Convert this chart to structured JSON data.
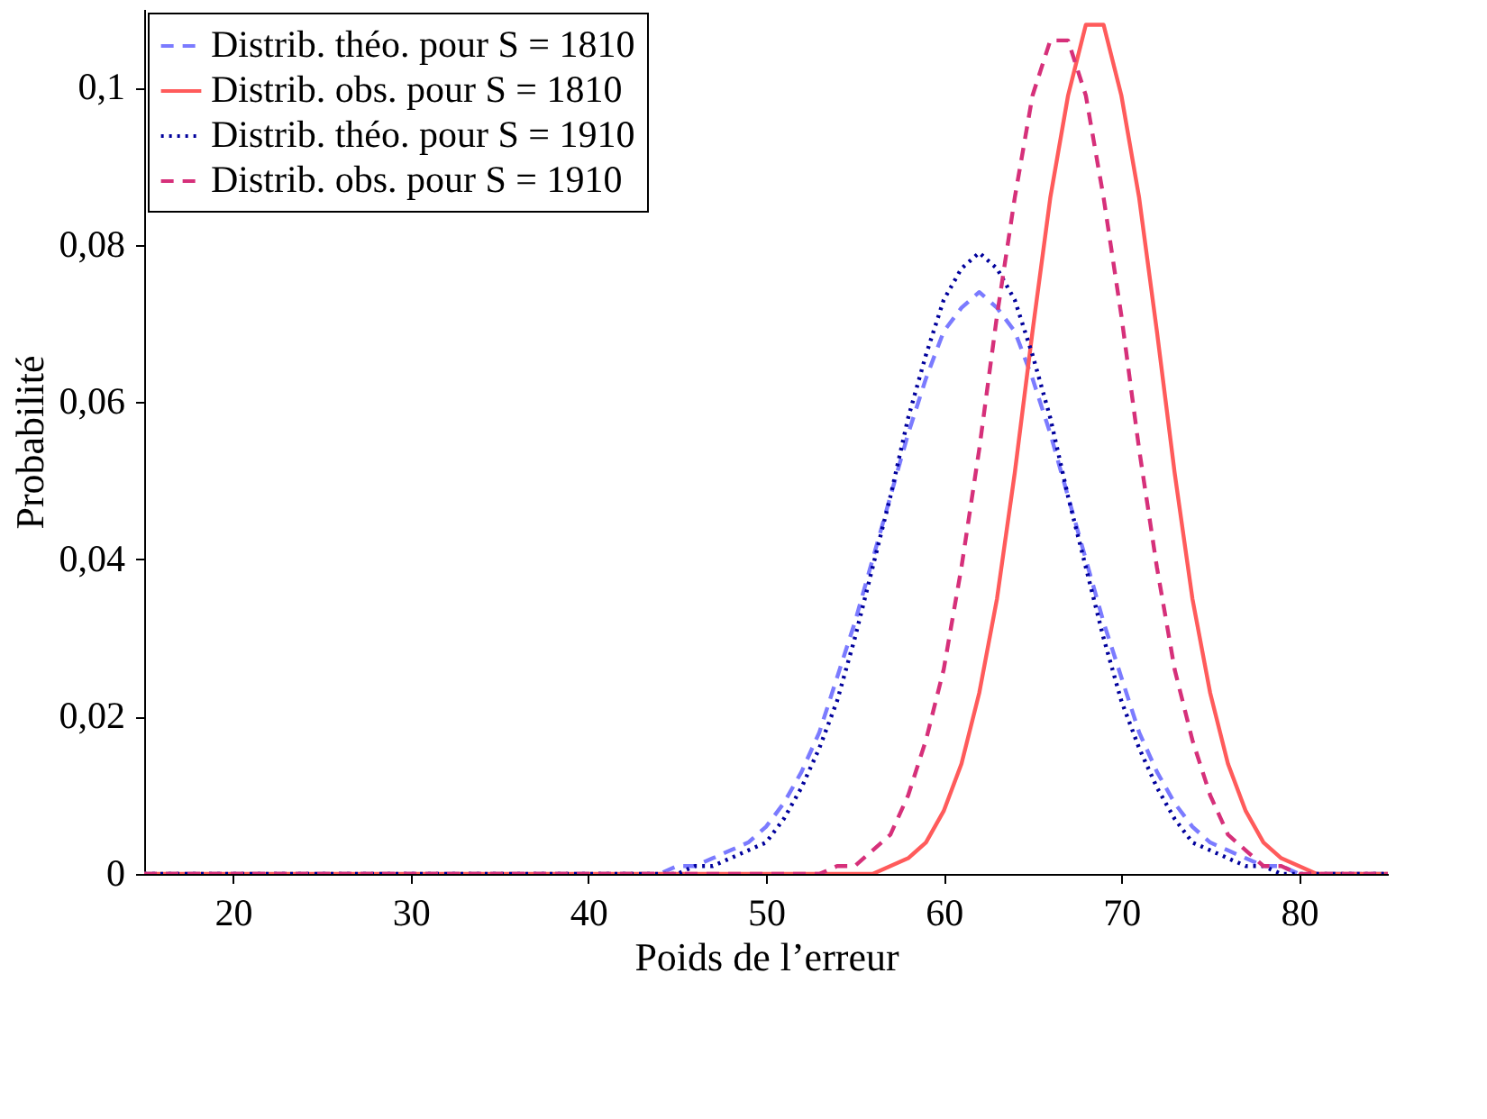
{
  "chart_data": {
    "type": "line",
    "xlabel": "Poids de l’erreur",
    "ylabel": "Probabilité",
    "xlim": [
      15,
      85
    ],
    "ylim": [
      0,
      0.11
    ],
    "xticks": [
      20,
      30,
      40,
      50,
      60,
      70,
      80
    ],
    "yticks": [
      {
        "value": 0,
        "label": "0"
      },
      {
        "value": 0.02,
        "label": "0,02"
      },
      {
        "value": 0.04,
        "label": "0,04"
      },
      {
        "value": 0.06,
        "label": "0,06"
      },
      {
        "value": 0.08,
        "label": "0,08"
      },
      {
        "value": 0.1,
        "label": "0,1"
      }
    ],
    "grid": false,
    "legend": "top left",
    "marker": "none",
    "series": [
      {
        "name": "Distrib. théo. pour S = 1810",
        "color": "#7b7bff",
        "line_style": "dashed",
        "x": [
          15,
          40,
          44,
          45,
          46,
          47,
          48,
          49,
          50,
          51,
          52,
          53,
          54,
          55,
          56,
          57,
          58,
          59,
          60,
          61,
          62,
          63,
          64,
          65,
          66,
          67,
          68,
          69,
          70,
          71,
          72,
          73,
          74,
          75,
          76,
          77,
          78,
          79,
          80,
          85
        ],
        "values": [
          0,
          0,
          0,
          0.001,
          0.001,
          0.002,
          0.003,
          0.004,
          0.006,
          0.009,
          0.013,
          0.018,
          0.025,
          0.032,
          0.04,
          0.048,
          0.056,
          0.063,
          0.069,
          0.072,
          0.074,
          0.072,
          0.069,
          0.063,
          0.056,
          0.048,
          0.04,
          0.032,
          0.025,
          0.018,
          0.013,
          0.009,
          0.006,
          0.004,
          0.003,
          0.002,
          0.001,
          0.001,
          0,
          0
        ]
      },
      {
        "name": "Distrib. obs. pour S = 1810",
        "color": "#ff5b5b",
        "line_style": "solid",
        "x": [
          15,
          54,
          55,
          56,
          57,
          58,
          59,
          60,
          61,
          62,
          63,
          64,
          65,
          66,
          67,
          68,
          69,
          70,
          71,
          72,
          73,
          74,
          75,
          76,
          77,
          78,
          79,
          80,
          81,
          85
        ],
        "values": [
          0,
          0,
          0,
          0,
          0.001,
          0.002,
          0.004,
          0.008,
          0.014,
          0.023,
          0.035,
          0.051,
          0.069,
          0.086,
          0.099,
          0.108,
          0.108,
          0.099,
          0.086,
          0.069,
          0.051,
          0.035,
          0.023,
          0.014,
          0.008,
          0.004,
          0.002,
          0.001,
          0,
          0
        ]
      },
      {
        "name": "Distrib. théo. pour S = 1910",
        "color": "#00009c",
        "line_style": "dotted",
        "x": [
          15,
          40,
          44,
          45,
          46,
          47,
          48,
          49,
          50,
          51,
          52,
          53,
          54,
          55,
          56,
          57,
          58,
          59,
          60,
          61,
          62,
          63,
          64,
          65,
          66,
          67,
          68,
          69,
          70,
          71,
          72,
          73,
          74,
          75,
          76,
          77,
          78,
          79,
          80,
          85
        ],
        "values": [
          0,
          0,
          0,
          0,
          0.001,
          0.001,
          0.002,
          0.003,
          0.004,
          0.007,
          0.011,
          0.016,
          0.022,
          0.03,
          0.039,
          0.048,
          0.058,
          0.066,
          0.073,
          0.077,
          0.079,
          0.077,
          0.073,
          0.066,
          0.058,
          0.048,
          0.039,
          0.03,
          0.022,
          0.016,
          0.011,
          0.007,
          0.004,
          0.003,
          0.002,
          0.001,
          0.001,
          0,
          0,
          0
        ]
      },
      {
        "name": "Distrib. obs. pour S = 1910",
        "color": "#d6307a",
        "line_style": "dashed",
        "x": [
          15,
          53,
          54,
          55,
          56,
          57,
          58,
          59,
          60,
          61,
          62,
          63,
          64,
          65,
          66,
          67,
          68,
          69,
          70,
          71,
          72,
          73,
          74,
          75,
          76,
          77,
          78,
          79,
          80,
          85
        ],
        "values": [
          0,
          0,
          0.001,
          0.001,
          0.003,
          0.005,
          0.01,
          0.017,
          0.026,
          0.039,
          0.054,
          0.071,
          0.086,
          0.099,
          0.106,
          0.106,
          0.099,
          0.086,
          0.071,
          0.054,
          0.039,
          0.026,
          0.017,
          0.01,
          0.005,
          0.003,
          0.001,
          0.001,
          0,
          0
        ]
      }
    ]
  }
}
